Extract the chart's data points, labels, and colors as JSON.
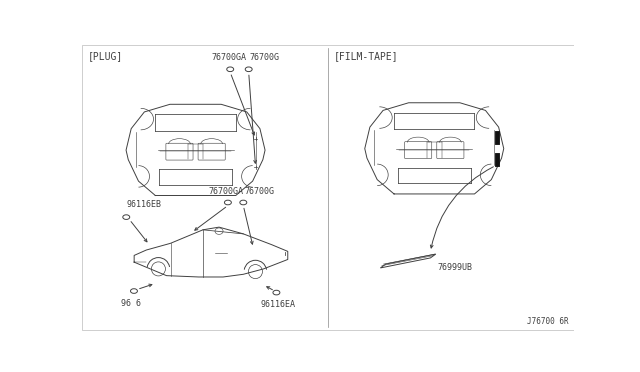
{
  "bg_color": "#f0ede8",
  "line_color": "#404040",
  "title_left": "[PLUG]",
  "title_right": "[FILM-TAPE]",
  "diagram_number": "J76700 6R",
  "labels": {
    "76700GA_top": "76700GA",
    "76700G_top": "76700G",
    "76700GA_mid": "76700GA",
    "76700G_mid": "76700G",
    "96116EB": "96116EB",
    "96116EA": "96116EA",
    "96_6": "96 6",
    "76999UB": "76999UB"
  },
  "font_size_label": 6.0,
  "font_size_title": 7.0
}
